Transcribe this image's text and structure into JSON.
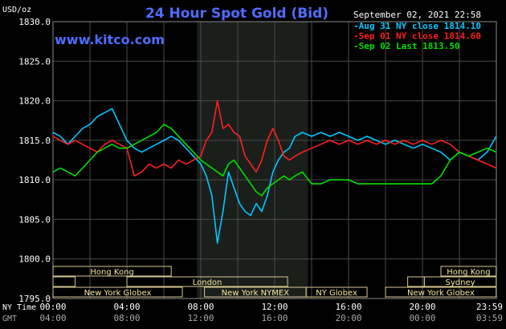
{
  "chart_data": {
    "type": "line",
    "title": "24 Hour Spot Gold (Bid)",
    "ylabel": "USD/oz",
    "watermark": "www.kitco.com",
    "timestamp": "September 02, 2021 22:58",
    "ylim": [
      1795,
      1830
    ],
    "y_ticks": [
      "1830.0",
      "1825.0",
      "1820.0",
      "1815.0",
      "1810.0",
      "1805.0",
      "1800.0",
      "1795.0"
    ],
    "x_axis_rows": [
      {
        "label": "NY Time",
        "ticks": [
          "00:00",
          "04:00",
          "08:00",
          "12:00",
          "16:00",
          "20:00",
          "23:59"
        ]
      },
      {
        "label": "GMT",
        "ticks": [
          "04:00",
          "08:00",
          "12:00",
          "16:00",
          "20:00",
          "00:00",
          "03:59"
        ]
      }
    ],
    "highlight_hours": [
      7.8,
      13.8
    ],
    "grid": true,
    "legend_position": "top-right",
    "colors": {
      "background": "#000000",
      "grid": "#4a4a4a",
      "text": "#ffffff",
      "title": "#4f6dff",
      "session_label": "#f5e6a0"
    },
    "sessions": [
      {
        "name": "Hong Kong",
        "row": 0,
        "start": 0.0,
        "end": 6.4
      },
      {
        "name": "",
        "row": 1,
        "start": 0.0,
        "end": 1.2
      },
      {
        "name": "London",
        "row": 1,
        "start": 4.0,
        "end": 12.7
      },
      {
        "name": "New York Globex",
        "row": 2,
        "start": 0.0,
        "end": 7.0
      },
      {
        "name": "New York NYMEX",
        "row": 2,
        "start": 8.2,
        "end": 13.7
      },
      {
        "name": "NY Globex",
        "row": 2,
        "start": 13.7,
        "end": 17.0
      },
      {
        "name": "Hong Kong",
        "row": 0,
        "start": 21.0,
        "end": 23.99
      },
      {
        "name": "",
        "row": 1,
        "start": 19.2,
        "end": 20.1
      },
      {
        "name": "Sydney",
        "row": 1,
        "start": 20.1,
        "end": 23.99
      },
      {
        "name": "New York Globex",
        "row": 2,
        "start": 18.0,
        "end": 23.99
      }
    ],
    "series": [
      {
        "name": "Aug 31 NY close 1814.10",
        "color": "#00c8ff",
        "x": [
          0,
          0.4,
          0.8,
          1.2,
          1.6,
          2.0,
          2.4,
          2.8,
          3.2,
          3.6,
          4.0,
          4.4,
          4.8,
          5.2,
          5.6,
          6.0,
          6.4,
          6.8,
          7.2,
          7.6,
          8.0,
          8.3,
          8.6,
          8.9,
          9.2,
          9.5,
          9.8,
          10.1,
          10.4,
          10.7,
          11.0,
          11.3,
          11.6,
          11.9,
          12.2,
          12.5,
          12.8,
          13.1,
          13.5,
          14.0,
          14.5,
          15.0,
          15.5,
          16.0,
          16.5,
          17.0,
          17.5,
          18.0,
          18.5,
          19.0,
          19.5,
          20.0,
          20.5,
          21.0,
          21.5,
          22.0,
          22.5,
          23.0,
          23.5,
          23.99
        ],
        "y": [
          1816.0,
          1815.5,
          1814.5,
          1815.5,
          1816.5,
          1817.0,
          1818.0,
          1818.5,
          1819.0,
          1817.0,
          1815.0,
          1814.0,
          1813.5,
          1814.0,
          1814.5,
          1815.0,
          1815.5,
          1815.0,
          1814.0,
          1813.0,
          1812.0,
          1810.5,
          1808.0,
          1802.0,
          1806.0,
          1811.0,
          1809.0,
          1807.0,
          1806.0,
          1805.5,
          1807.0,
          1806.0,
          1808.0,
          1811.0,
          1812.5,
          1813.5,
          1814.0,
          1815.5,
          1816.0,
          1815.5,
          1816.0,
          1815.5,
          1816.0,
          1815.5,
          1815.0,
          1815.5,
          1815.0,
          1814.5,
          1815.0,
          1814.5,
          1814.0,
          1814.5,
          1814.0,
          1813.5,
          1812.5,
          1813.5,
          1813.0,
          1812.5,
          1813.5,
          1815.5
        ]
      },
      {
        "name": "Sep 01 NY close 1814.60",
        "color": "#ff2020",
        "x": [
          0,
          0.4,
          0.8,
          1.2,
          1.6,
          2.0,
          2.4,
          2.8,
          3.2,
          3.6,
          4.0,
          4.4,
          4.8,
          5.2,
          5.6,
          6.0,
          6.4,
          6.8,
          7.2,
          7.6,
          8.0,
          8.3,
          8.6,
          8.9,
          9.2,
          9.5,
          9.8,
          10.1,
          10.4,
          10.7,
          11.0,
          11.3,
          11.6,
          11.9,
          12.2,
          12.5,
          12.8,
          13.1,
          13.5,
          14.0,
          14.5,
          15.0,
          15.5,
          16.0,
          16.5,
          17.0,
          17.5,
          18.0,
          18.5,
          19.0,
          19.5,
          20.0,
          20.5,
          21.0,
          21.5,
          22.0,
          22.5,
          23.0,
          23.5,
          23.99
        ],
        "y": [
          1815.5,
          1815.0,
          1814.5,
          1815.0,
          1814.5,
          1814.0,
          1813.5,
          1814.5,
          1815.0,
          1814.5,
          1814.0,
          1810.5,
          1811.0,
          1812.0,
          1811.5,
          1812.0,
          1811.5,
          1812.5,
          1812.0,
          1812.5,
          1813.0,
          1815.0,
          1816.0,
          1820.0,
          1816.5,
          1817.0,
          1816.0,
          1815.5,
          1813.0,
          1812.0,
          1811.0,
          1812.5,
          1815.0,
          1816.5,
          1815.0,
          1813.0,
          1812.5,
          1813.0,
          1813.5,
          1814.0,
          1814.5,
          1815.0,
          1814.5,
          1815.0,
          1814.5,
          1815.0,
          1814.5,
          1815.0,
          1814.5,
          1815.0,
          1814.5,
          1815.0,
          1814.5,
          1815.0,
          1814.5,
          1813.5,
          1813.0,
          1812.5,
          1812.0,
          1811.5
        ]
      },
      {
        "name": "Sep 02 Last 1813.50",
        "color": "#00e000",
        "x": [
          0,
          0.4,
          0.8,
          1.2,
          1.6,
          2.0,
          2.4,
          2.8,
          3.2,
          3.6,
          4.0,
          4.4,
          4.8,
          5.2,
          5.6,
          6.0,
          6.4,
          6.8,
          7.2,
          7.6,
          8.0,
          8.3,
          8.6,
          8.9,
          9.2,
          9.5,
          9.8,
          10.1,
          10.4,
          10.7,
          11.0,
          11.3,
          11.6,
          11.9,
          12.2,
          12.5,
          12.8,
          13.1,
          13.5,
          14.0,
          14.5,
          15.0,
          15.5,
          16.0,
          16.5,
          17.0,
          17.5,
          18.0,
          18.5,
          19.0,
          19.5,
          20.0,
          20.5,
          21.0,
          21.5,
          22.0,
          22.5,
          23.0,
          23.5,
          23.99
        ],
        "y": [
          1811.0,
          1811.5,
          1811.0,
          1810.5,
          1811.5,
          1812.5,
          1813.5,
          1814.0,
          1814.5,
          1814.0,
          1814.0,
          1814.5,
          1815.0,
          1815.5,
          1816.0,
          1817.0,
          1816.5,
          1815.5,
          1814.5,
          1813.5,
          1812.5,
          1812.0,
          1811.5,
          1811.0,
          1810.5,
          1812.0,
          1812.5,
          1811.5,
          1810.5,
          1809.5,
          1808.5,
          1808.0,
          1809.0,
          1809.5,
          1810.0,
          1810.5,
          1810.0,
          1810.5,
          1811.0,
          1809.5,
          1809.5,
          1810.0,
          1810.0,
          1810.0,
          1809.5,
          1809.5,
          1809.5,
          1809.5,
          1809.5,
          1809.5,
          1809.5,
          1809.5,
          1809.5,
          1810.5,
          1812.5,
          1813.5,
          1813.0,
          1813.5,
          1814.0,
          1813.5
        ]
      }
    ]
  }
}
